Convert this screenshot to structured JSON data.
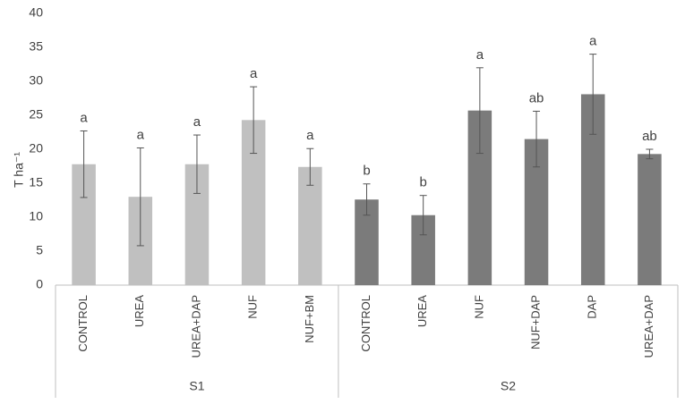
{
  "chart_data": {
    "type": "bar",
    "y_label": "T ha⁻¹",
    "ylim": [
      0,
      40
    ],
    "yticks": [
      0,
      5,
      10,
      15,
      20,
      25,
      30,
      35,
      40
    ],
    "groups": [
      {
        "name": "S1",
        "color": "#c0c0c0",
        "categories": [
          "CONTROL",
          "UREA",
          "UREA+DAP",
          "NUF",
          "NUF+BM"
        ],
        "values": [
          17.8,
          13,
          17.8,
          24.3,
          17.4
        ],
        "errors": [
          4.9,
          7.2,
          4.3,
          4.9,
          2.7
        ],
        "labels": [
          "a",
          "a",
          "a",
          "a",
          "a"
        ]
      },
      {
        "name": "S2",
        "color": "#7b7b7b",
        "categories": [
          "CONTROL",
          "UREA",
          "NUF",
          "NUF+DAP",
          "DAP",
          "UREA+DAP"
        ],
        "values": [
          12.6,
          10.3,
          25.7,
          21.5,
          28.1,
          19.3
        ],
        "errors": [
          2.3,
          2.9,
          6.3,
          4.1,
          5.9,
          0.7
        ],
        "labels": [
          "b",
          "b",
          "a",
          "ab",
          "a",
          "ab"
        ]
      }
    ]
  }
}
